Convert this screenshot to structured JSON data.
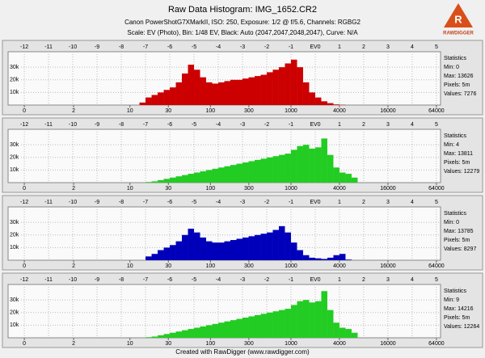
{
  "header": {
    "title": "Raw Data Histogram: IMG_1652.CR2",
    "subtitle": "Canon PowerShotG7XMarkII, ISO: 250, Exposure: 1/2 @ f/5.6, Channels: RGBG2",
    "settings": "Scale: EV (Photo), Bin: 1/48 EV, Black: Auto (2047,2047,2048,2047), Curve: N/A"
  },
  "logo": "RAWDIGGER",
  "footer": "Created with RawDigger (www.rawdigger.com)",
  "chart_data": [
    {
      "type": "histogram",
      "color": "#cc0000",
      "grid": true,
      "bins": [
        -7.5,
        -7.25,
        -7,
        -6.75,
        -6.5,
        -6.25,
        -6,
        -5.75,
        -5.5,
        -5.25,
        -5,
        -4.75,
        -4.5,
        -4.25,
        -4,
        -3.75,
        -3.5,
        -3.25,
        -3,
        -2.75,
        -2.5,
        -2.25,
        -2,
        -1.75,
        -1.5,
        -1.25,
        -1,
        -0.75,
        -0.5,
        -0.25,
        0,
        0.25,
        0.5,
        0.75,
        1,
        1.25,
        1.5,
        1.75,
        2
      ],
      "values": [
        0,
        2000,
        6000,
        8000,
        10000,
        12000,
        14000,
        18000,
        25000,
        32000,
        28000,
        22000,
        18000,
        17000,
        18000,
        19000,
        20000,
        20000,
        21000,
        22000,
        23000,
        24000,
        26000,
        28000,
        30000,
        33000,
        36000,
        30000,
        18000,
        10000,
        6000,
        3000,
        1500,
        500,
        200,
        0,
        0,
        0
      ],
      "xlim": [
        -12.67,
        5.17
      ],
      "ylim": [
        0,
        41000
      ],
      "yticks": [
        {
          "value": 10000,
          "label": "10k"
        },
        {
          "value": 20000,
          "label": "20k"
        },
        {
          "value": 30000,
          "label": "30k"
        }
      ],
      "xticks": [
        -12,
        -11,
        -10,
        -9,
        -8,
        -7,
        -6,
        -5,
        -4,
        -3,
        -2,
        -1,
        {
          "value": 0,
          "label": "EV0"
        },
        1,
        2,
        3,
        4,
        5
      ],
      "xticks2": [
        {
          "value": -12,
          "label": "0"
        },
        {
          "value": -9.966,
          "label": "2"
        },
        {
          "value": -7.644,
          "label": "10"
        },
        {
          "value": -6.059,
          "label": "30"
        },
        {
          "value": -4.322,
          "label": "100"
        },
        {
          "value": -2.737,
          "label": "300"
        },
        {
          "value": -1,
          "label": "1000"
        },
        {
          "value": 1,
          "label": "4000"
        },
        {
          "value": 3,
          "label": "16000"
        },
        {
          "value": 5,
          "label": "64000"
        }
      ],
      "stats_title": "Statistics",
      "stats": [
        "Min: 0",
        "Max: 13626",
        "Pixels: 5m",
        "Values: 7276"
      ]
    },
    {
      "type": "histogram",
      "color": "#22cc22",
      "grid": true,
      "bins": [
        -7.5,
        -7.25,
        -7,
        -6.75,
        -6.5,
        -6.25,
        -6,
        -5.75,
        -5.5,
        -5.25,
        -5,
        -4.75,
        -4.5,
        -4.25,
        -4,
        -3.75,
        -3.5,
        -3.25,
        -3,
        -2.75,
        -2.5,
        -2.25,
        -2,
        -1.75,
        -1.5,
        -1.25,
        -1,
        -0.75,
        -0.5,
        -0.25,
        0,
        0.25,
        0.5,
        0.75,
        1,
        1.25,
        1.5,
        1.75,
        2
      ],
      "values": [
        0,
        0,
        500,
        1000,
        2000,
        3000,
        4000,
        5000,
        6000,
        7000,
        8000,
        9000,
        10000,
        11000,
        12000,
        13000,
        14000,
        15000,
        16000,
        17000,
        18000,
        19000,
        20000,
        21000,
        22000,
        23000,
        26000,
        29000,
        30000,
        27000,
        28000,
        35000,
        22000,
        12000,
        8000,
        7000,
        4000,
        0
      ],
      "xlim": [
        -12.67,
        5.17
      ],
      "ylim": [
        0,
        41000
      ],
      "yticks": [
        {
          "value": 10000,
          "label": "10k"
        },
        {
          "value": 20000,
          "label": "20k"
        },
        {
          "value": 30000,
          "label": "30k"
        }
      ],
      "xticks": [
        -12,
        -11,
        -10,
        -9,
        -8,
        -7,
        -6,
        -5,
        -4,
        -3,
        -2,
        -1,
        {
          "value": 0,
          "label": "EV0"
        },
        1,
        2,
        3,
        4,
        5
      ],
      "xticks2": [
        {
          "value": -12,
          "label": "0"
        },
        {
          "value": -9.966,
          "label": "2"
        },
        {
          "value": -7.644,
          "label": "10"
        },
        {
          "value": -6.059,
          "label": "30"
        },
        {
          "value": -4.322,
          "label": "100"
        },
        {
          "value": -2.737,
          "label": "300"
        },
        {
          "value": -1,
          "label": "1000"
        },
        {
          "value": 1,
          "label": "4000"
        },
        {
          "value": 3,
          "label": "16000"
        },
        {
          "value": 5,
          "label": "64000"
        }
      ],
      "stats_title": "Statistics",
      "stats": [
        "Min: 4",
        "Max: 13811",
        "Pixels: 5m",
        "Values: 12279"
      ]
    },
    {
      "type": "histogram",
      "color": "#0000bb",
      "grid": true,
      "bins": [
        -7.5,
        -7.25,
        -7,
        -6.75,
        -6.5,
        -6.25,
        -6,
        -5.75,
        -5.5,
        -5.25,
        -5,
        -4.75,
        -4.5,
        -4.25,
        -4,
        -3.75,
        -3.5,
        -3.25,
        -3,
        -2.75,
        -2.5,
        -2.25,
        -2,
        -1.75,
        -1.5,
        -1.25,
        -1,
        -0.75,
        -0.5,
        -0.25,
        0,
        0.25,
        0.5,
        0.75,
        1,
        1.25,
        1.5,
        1.75,
        2
      ],
      "values": [
        0,
        0,
        3000,
        5000,
        8000,
        10000,
        12000,
        15000,
        20000,
        25000,
        22000,
        18000,
        15000,
        14000,
        14000,
        15000,
        16000,
        17000,
        18000,
        19000,
        20000,
        21000,
        22000,
        24000,
        27000,
        22000,
        14000,
        8000,
        4000,
        2000,
        1500,
        1000,
        2000,
        4000,
        5000,
        500,
        0,
        0
      ],
      "xlim": [
        -12.67,
        5.17
      ],
      "ylim": [
        0,
        41000
      ],
      "yticks": [
        {
          "value": 10000,
          "label": "10k"
        },
        {
          "value": 20000,
          "label": "20k"
        },
        {
          "value": 30000,
          "label": "30k"
        }
      ],
      "xticks": [
        -12,
        -11,
        -10,
        -9,
        -8,
        -7,
        -6,
        -5,
        -4,
        -3,
        -2,
        -1,
        {
          "value": 0,
          "label": "EV0"
        },
        1,
        2,
        3,
        4,
        5
      ],
      "xticks2": [
        {
          "value": -12,
          "label": "0"
        },
        {
          "value": -9.966,
          "label": "2"
        },
        {
          "value": -7.644,
          "label": "10"
        },
        {
          "value": -6.059,
          "label": "30"
        },
        {
          "value": -4.322,
          "label": "100"
        },
        {
          "value": -2.737,
          "label": "300"
        },
        {
          "value": -1,
          "label": "1000"
        },
        {
          "value": 1,
          "label": "4000"
        },
        {
          "value": 3,
          "label": "16000"
        },
        {
          "value": 5,
          "label": "64000"
        }
      ],
      "stats_title": "Statistics",
      "stats": [
        "Min: 0",
        "Max: 13785",
        "Pixels: 5m",
        "Values: 8297"
      ]
    },
    {
      "type": "histogram",
      "color": "#22cc22",
      "grid": true,
      "bins": [
        -7.5,
        -7.25,
        -7,
        -6.75,
        -6.5,
        -6.25,
        -6,
        -5.75,
        -5.5,
        -5.25,
        -5,
        -4.75,
        -4.5,
        -4.25,
        -4,
        -3.75,
        -3.5,
        -3.25,
        -3,
        -2.75,
        -2.5,
        -2.25,
        -2,
        -1.75,
        -1.5,
        -1.25,
        -1,
        -0.75,
        -0.5,
        -0.25,
        0,
        0.25,
        0.5,
        0.75,
        1,
        1.25,
        1.5,
        1.75,
        2
      ],
      "values": [
        0,
        0,
        500,
        1000,
        2000,
        3000,
        4000,
        5000,
        6000,
        7000,
        8000,
        9000,
        10000,
        11000,
        12000,
        13000,
        14000,
        15000,
        16000,
        17000,
        18000,
        19000,
        20000,
        21000,
        22000,
        23000,
        26000,
        29000,
        30000,
        28000,
        29000,
        37000,
        22000,
        12000,
        8000,
        7000,
        4000,
        0
      ],
      "xlim": [
        -12.67,
        5.17
      ],
      "ylim": [
        0,
        41000
      ],
      "yticks": [
        {
          "value": 10000,
          "label": "10k"
        },
        {
          "value": 20000,
          "label": "20k"
        },
        {
          "value": 30000,
          "label": "30k"
        }
      ],
      "xticks": [
        -12,
        -11,
        -10,
        -9,
        -8,
        -7,
        -6,
        -5,
        -4,
        -3,
        -2,
        -1,
        {
          "value": 0,
          "label": "EV0"
        },
        1,
        2,
        3,
        4,
        5
      ],
      "xticks2": [
        {
          "value": -12,
          "label": "0"
        },
        {
          "value": -9.966,
          "label": "2"
        },
        {
          "value": -7.644,
          "label": "10"
        },
        {
          "value": -6.059,
          "label": "30"
        },
        {
          "value": -4.322,
          "label": "100"
        },
        {
          "value": -2.737,
          "label": "300"
        },
        {
          "value": -1,
          "label": "1000"
        },
        {
          "value": 1,
          "label": "4000"
        },
        {
          "value": 3,
          "label": "16000"
        },
        {
          "value": 5,
          "label": "64000"
        }
      ],
      "stats_title": "Statistics",
      "stats": [
        "Min: 9",
        "Max: 14216",
        "Pixels: 5m",
        "Values: 12264"
      ]
    }
  ]
}
